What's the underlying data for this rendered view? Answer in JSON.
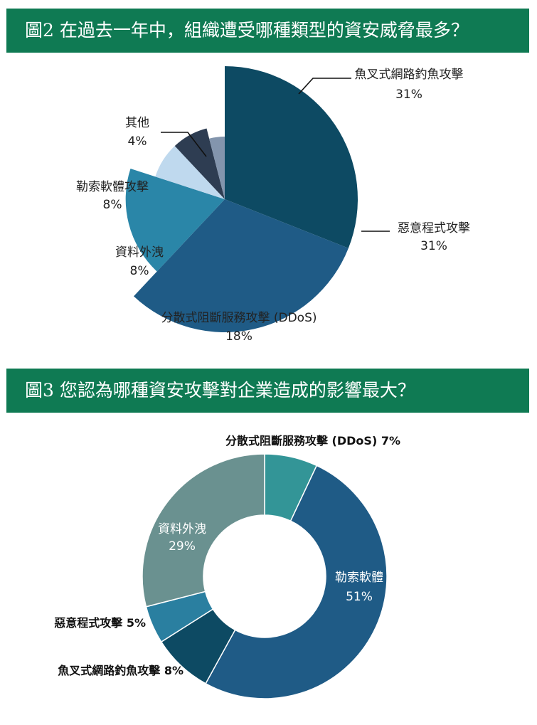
{
  "figure2": {
    "title": "圖2 在過去一年中，組織遭受哪種類型的資安威脅最多？"
  },
  "figure3": {
    "title": "圖3 您認為哪種資安攻擊對企業造成的影響最大？"
  },
  "chart_data": [
    {
      "type": "pie",
      "title": "圖2 在過去一年中，組織遭受哪種類型的資安威脅最多？",
      "style": "polar-area (slices drawn with radii varying by value)",
      "categories": [
        "魚叉式網路釣魚攻擊",
        "惡意程式攻擊",
        "分散式阻斷服務攻擊 (DDoS)",
        "資料外洩",
        "勒索軟體攻擊",
        "其他"
      ],
      "values": [
        31,
        31,
        18,
        8,
        8,
        4
      ],
      "value_labels": [
        "31%",
        "31%",
        "18%",
        "8%",
        "8%",
        "4%"
      ],
      "colors": [
        "#0d4a63",
        "#1f5b86",
        "#2a86a8",
        "#bfd9ee",
        "#2e3d52",
        "#8395ad"
      ]
    },
    {
      "type": "pie",
      "title": "圖3 您認為哪種資安攻擊對企業造成的影響最大？",
      "style": "donut",
      "categories": [
        "分散式阻斷服務攻擊 (DDoS)",
        "勒索軟體",
        "魚叉式網路釣魚攻擊",
        "惡意程式攻擊",
        "資料外洩"
      ],
      "values": [
        7,
        51,
        8,
        5,
        29
      ],
      "value_labels": [
        "7%",
        "51%",
        "8%",
        "5%",
        "29%"
      ],
      "colors": [
        "#339597",
        "#1f5b86",
        "#0d4a63",
        "#2a7fa0",
        "#6a9190"
      ]
    }
  ]
}
